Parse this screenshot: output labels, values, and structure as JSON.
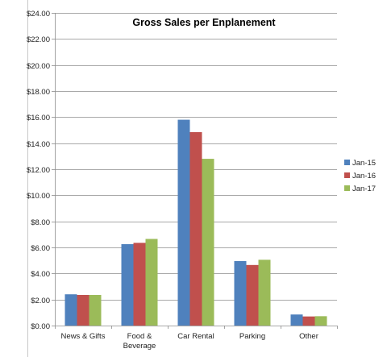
{
  "chart_data": {
    "type": "bar",
    "title": "Gross Sales per Enplanement",
    "xlabel": "",
    "ylabel": "",
    "categories": [
      [
        "News & Gifts"
      ],
      [
        "Food &",
        "Beverage"
      ],
      [
        "Car Rental"
      ],
      [
        "Parking"
      ],
      [
        "Other"
      ]
    ],
    "series": [
      {
        "name": "Jan-15",
        "color": "#4f81bd",
        "values": [
          2.4,
          6.25,
          15.8,
          4.95,
          0.85
        ]
      },
      {
        "name": "Jan-16",
        "color": "#c0504d",
        "values": [
          2.35,
          6.35,
          14.85,
          4.65,
          0.7
        ]
      },
      {
        "name": "Jan-17",
        "color": "#9bbb59",
        "values": [
          2.35,
          6.65,
          12.8,
          5.05,
          0.72
        ]
      }
    ],
    "ylim": [
      0,
      24
    ],
    "ytick_step": 2,
    "ytick_labels": [
      "$0.00",
      "$2.00",
      "$4.00",
      "$6.00",
      "$8.00",
      "$10.00",
      "$12.00",
      "$14.00",
      "$16.00",
      "$18.00",
      "$20.00",
      "$22.00",
      "$24.00"
    ],
    "grid": true,
    "legend_position": "right"
  }
}
